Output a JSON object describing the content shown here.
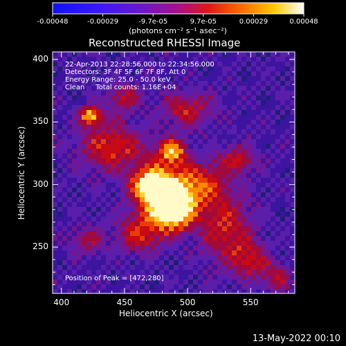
{
  "colorbar": {
    "ticks": [
      "-0.00048",
      "-0.00029",
      "-9.7e-05",
      "9.7e-05",
      "0.00029",
      "0.00048"
    ],
    "unit_label": "(photons cm⁻² s⁻¹ asec⁻²)",
    "range": [
      -0.00048,
      0.00048
    ]
  },
  "chart_data": {
    "type": "heatmap",
    "title": "Reconstructed RHESSI Image",
    "xlabel": "Heliocentric X (arcsec)",
    "ylabel": "Heliocentric Y (arcsec)",
    "xlim": [
      393,
      585
    ],
    "ylim": [
      213,
      406
    ],
    "xticks": [
      400,
      450,
      500,
      550
    ],
    "yticks": [
      250,
      300,
      350,
      400
    ],
    "peak": [
      472,
      280
    ],
    "colormap": "rainbow-hot (blue-purple-red-orange-yellow-white)"
  },
  "annotations": {
    "time_range": "22-Apr-2013 22:28:56.000 to 22:34:56.000",
    "detectors": "Detectors: 3F 4F 5F 6F 7F 8F, Att 0",
    "energy": "Energy Range: 25.0 - 50.0 keV",
    "clean": "Clean     Total counts: 1.16E+04",
    "peak_position": "Position of Peak = [472,280]"
  },
  "footer": {
    "date": "13-May-2022 00:10"
  }
}
